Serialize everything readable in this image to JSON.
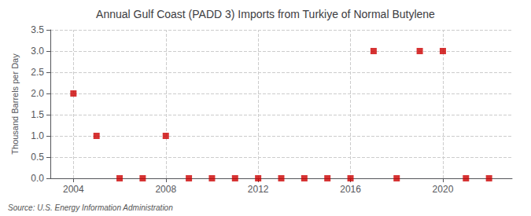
{
  "chart_data": {
    "type": "scatter",
    "title": "Annual Gulf Coast (PADD 3) Imports from Turkiye of Normal Butylene",
    "ylabel": "Thousand Barrels per Day",
    "annotation": "Source: U.S. Energy Information Administration",
    "x": [
      2004,
      2005,
      2006,
      2007,
      2008,
      2009,
      2010,
      2011,
      2012,
      2013,
      2014,
      2015,
      2016,
      2017,
      2018,
      2019,
      2020,
      2021,
      2022
    ],
    "values": [
      2.0,
      1.0,
      0.0,
      0.0,
      1.0,
      0.0,
      0.0,
      0.0,
      0.0,
      0.0,
      0.0,
      0.0,
      0.0,
      3.0,
      0.0,
      3.0,
      3.0,
      0.0,
      0.0
    ],
    "color": "#cc0000",
    "marker": "square",
    "xlim": [
      2003,
      2023
    ],
    "xticks": [
      2004,
      2008,
      2012,
      2016,
      2020
    ],
    "ylim": [
      0,
      3.5
    ],
    "yticks": [
      {
        "value": 0,
        "label": "0.0"
      },
      {
        "value": 0.5,
        "label": "0.5"
      },
      {
        "value": 1,
        "label": "1.0"
      },
      {
        "value": 1.5,
        "label": "1.5"
      },
      {
        "value": 2,
        "label": "2.0"
      },
      {
        "value": 2.5,
        "label": "2.5"
      },
      {
        "value": 3,
        "label": "3.0"
      },
      {
        "value": 3.5,
        "label": "3.5"
      }
    ],
    "grid": true
  }
}
